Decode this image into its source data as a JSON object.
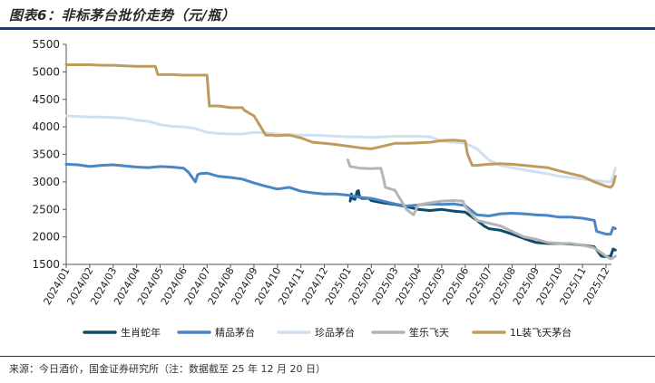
{
  "figure": {
    "title": "图表6：非标茅台批价走势（元/瓶）",
    "source": "来源：今日酒价，国金证券研究所（注：数据截至 25 年 12 月 20 日）"
  },
  "colors": {
    "生肖蛇年": "#0e4a6a",
    "精品茅台": "#4a86c5",
    "珍品茅台": "#cfe0f0",
    "笙乐飞天": "#b4b4b4",
    "1L装飞天茅台": "#bf9c5d",
    "axis": "#555555",
    "rule": "#1e3d63"
  },
  "chart_data": {
    "type": "line",
    "title": "图表6：非标茅台批价走势（元/瓶）",
    "xlabel": "",
    "ylabel": "",
    "x_start": "2024/01",
    "x_end": "2025/12",
    "categories": [
      "2024/01",
      "2024/02",
      "2024/03",
      "2024/04",
      "2024/05",
      "2024/06",
      "2024/07",
      "2024/08",
      "2024/09",
      "2024/10",
      "2024/11",
      "2024/12",
      "2025/01",
      "2025/02",
      "2025/03",
      "2025/04",
      "2025/05",
      "2025/06",
      "2025/07",
      "2025/08",
      "2025/09",
      "2025/10",
      "2025/11",
      "2025/12"
    ],
    "ylim": [
      1500,
      5500
    ],
    "yticks": [
      1500,
      2000,
      2500,
      3000,
      3500,
      4000,
      4500,
      5000,
      5500
    ],
    "legend_position": "bottom",
    "series": [
      {
        "name": "生肖蛇年",
        "x": [
          12.1,
          12.15,
          12.2,
          12.3,
          12.4,
          12.45,
          12.5,
          12.6,
          12.9,
          13.0,
          13.5,
          14.0,
          14.5,
          15.0,
          15.5,
          16.0,
          16.5,
          17.0,
          17.5,
          17.8,
          18.0,
          18.5,
          19.0,
          19.5,
          20.0,
          20.5,
          21.0,
          21.5,
          22.0,
          22.5,
          22.8,
          23.0,
          23.2,
          23.3,
          23.4
        ],
        "values": [
          2650,
          2780,
          2700,
          2680,
          2830,
          2840,
          2720,
          2700,
          2700,
          2660,
          2620,
          2590,
          2550,
          2500,
          2480,
          2500,
          2470,
          2450,
          2300,
          2200,
          2150,
          2120,
          2050,
          1970,
          1900,
          1880,
          1880,
          1870,
          1850,
          1820,
          1650,
          1640,
          1650,
          1780,
          1760
        ]
      },
      {
        "name": "精品茅台",
        "x": [
          0,
          0.5,
          1.0,
          1.5,
          2.0,
          2.5,
          3.0,
          3.5,
          4.0,
          4.5,
          5.0,
          5.2,
          5.5,
          5.6,
          5.7,
          6.0,
          6.5,
          7.0,
          7.5,
          8.0,
          8.5,
          9.0,
          9.5,
          10.0,
          10.5,
          11.0,
          11.5,
          12.0,
          12.5,
          13.0,
          13.5,
          14.0,
          14.5,
          15.0,
          15.5,
          16.0,
          16.5,
          17.0,
          17.5,
          18.0,
          18.5,
          19.0,
          19.5,
          20.0,
          20.5,
          21.0,
          21.5,
          22.0,
          22.5,
          22.6,
          23.0,
          23.2,
          23.3,
          23.4
        ],
        "values": [
          3320,
          3310,
          3280,
          3300,
          3310,
          3290,
          3270,
          3260,
          3280,
          3270,
          3250,
          3180,
          3000,
          3130,
          3150,
          3160,
          3100,
          3080,
          3050,
          2980,
          2920,
          2870,
          2900,
          2830,
          2800,
          2780,
          2780,
          2760,
          2720,
          2700,
          2650,
          2600,
          2560,
          2580,
          2600,
          2590,
          2600,
          2570,
          2400,
          2380,
          2420,
          2430,
          2420,
          2400,
          2390,
          2360,
          2360,
          2340,
          2300,
          2100,
          2050,
          2050,
          2170,
          2150
        ]
      },
      {
        "name": "珍品茅台",
        "x": [
          0,
          0.5,
          1.0,
          1.5,
          2.0,
          2.5,
          3.0,
          3.5,
          4.0,
          4.5,
          5.0,
          5.5,
          6.0,
          6.5,
          7.0,
          7.5,
          8.0,
          8.5,
          9.0,
          9.5,
          10.0,
          10.5,
          11.0,
          11.5,
          12.0,
          12.5,
          13.0,
          13.5,
          14.0,
          14.5,
          15.0,
          15.5,
          16.0,
          16.5,
          17.0,
          17.5,
          18.0,
          18.5,
          19.0,
          19.5,
          20.0,
          20.5,
          21.0,
          21.5,
          22.0,
          22.5,
          23.0,
          23.2,
          23.3,
          23.4
        ],
        "values": [
          4200,
          4190,
          4180,
          4180,
          4170,
          4160,
          4120,
          4100,
          4040,
          4010,
          4000,
          3970,
          3900,
          3880,
          3870,
          3870,
          3900,
          3890,
          3870,
          3860,
          3850,
          3850,
          3840,
          3830,
          3820,
          3820,
          3810,
          3820,
          3830,
          3830,
          3830,
          3820,
          3740,
          3720,
          3700,
          3600,
          3400,
          3300,
          3260,
          3220,
          3180,
          3150,
          3100,
          3080,
          3050,
          3030,
          3000,
          3000,
          3100,
          3250
        ]
      },
      {
        "name": "笙乐飞天",
        "x": [
          12.0,
          12.1,
          12.5,
          13.0,
          13.4,
          13.5,
          13.6,
          14.0,
          14.5,
          14.8,
          15.0,
          15.5,
          16.0,
          16.5,
          16.9,
          17.0,
          17.3,
          17.5,
          18.0,
          18.5,
          19.0,
          19.5,
          20.0,
          20.5,
          21.0,
          21.5,
          22.0,
          22.5,
          23.0,
          23.2,
          23.3,
          23.4
        ],
        "values": [
          3400,
          3280,
          3250,
          3240,
          3250,
          3100,
          2900,
          2850,
          2500,
          2400,
          2580,
          2620,
          2650,
          2660,
          2650,
          2550,
          2400,
          2300,
          2250,
          2200,
          2100,
          2000,
          1960,
          1900,
          1880,
          1880,
          1850,
          1800,
          1650,
          1600,
          1620,
          1650
        ]
      },
      {
        "name": "1L装飞天茅台",
        "x": [
          0,
          0.5,
          1.0,
          1.5,
          2.0,
          2.5,
          3.0,
          3.5,
          3.8,
          3.9,
          4.0,
          4.5,
          5.0,
          5.5,
          6.0,
          6.1,
          6.5,
          7.0,
          7.5,
          7.6,
          8.0,
          8.5,
          8.8,
          8.9,
          9.0,
          9.5,
          10.0,
          10.5,
          11.0,
          11.5,
          12.0,
          12.5,
          13.0,
          13.5,
          14.0,
          14.5,
          15.0,
          15.5,
          16.0,
          16.5,
          17.0,
          17.1,
          17.3,
          17.5,
          18.0,
          18.5,
          19.0,
          19.5,
          20.0,
          20.5,
          21.0,
          21.5,
          22.0,
          22.5,
          23.0,
          23.2,
          23.3,
          23.4
        ],
        "values": [
          5130,
          5130,
          5130,
          5120,
          5120,
          5110,
          5100,
          5100,
          5100,
          4950,
          4950,
          4950,
          4940,
          4940,
          4940,
          4380,
          4380,
          4350,
          4350,
          4300,
          4200,
          3850,
          3850,
          3840,
          3840,
          3850,
          3800,
          3720,
          3700,
          3680,
          3650,
          3620,
          3600,
          3650,
          3700,
          3700,
          3710,
          3720,
          3750,
          3760,
          3740,
          3500,
          3300,
          3300,
          3320,
          3330,
          3320,
          3300,
          3280,
          3260,
          3200,
          3150,
          3100,
          3000,
          2920,
          2900,
          2950,
          3100
        ]
      }
    ]
  }
}
